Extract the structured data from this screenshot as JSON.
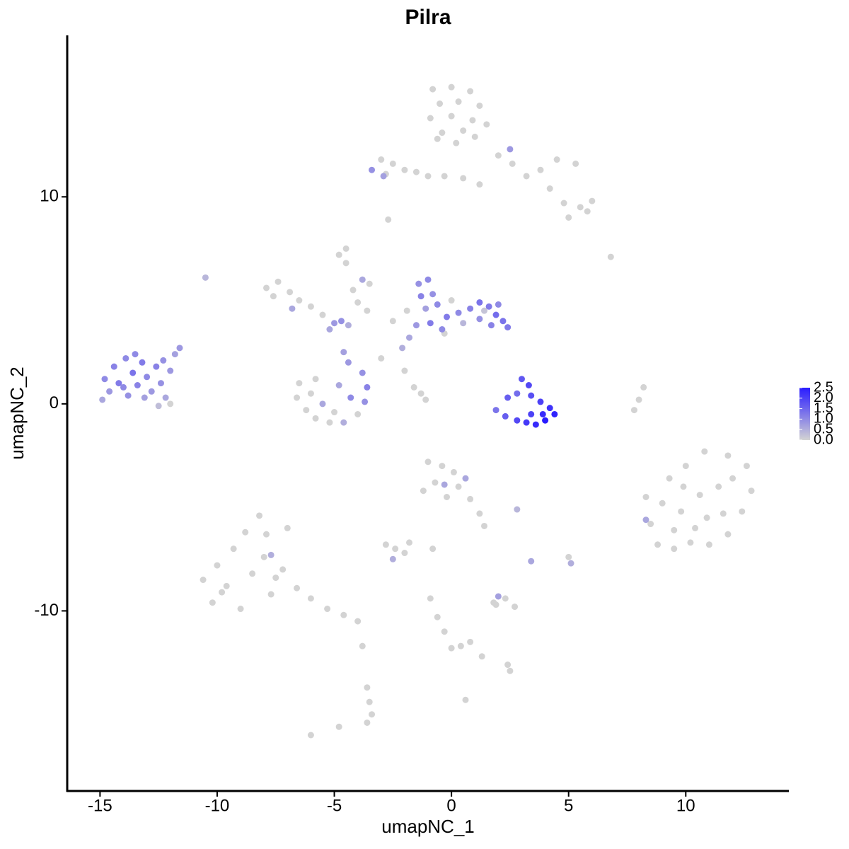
{
  "chart_data": {
    "type": "scatter",
    "title": "Pilra",
    "x_label": "umapNC_1",
    "y_label": "umapNC_2",
    "xlim": [
      -16.4,
      14.4
    ],
    "ylim": [
      -18.7,
      17.8
    ],
    "xticks": [
      -15,
      -10,
      -5,
      0,
      5,
      10
    ],
    "yticks": [
      -10,
      0,
      10
    ],
    "colorbar": {
      "lim": [
        0,
        2.5
      ],
      "low": "#d3d3d3",
      "high": "#2a1cff",
      "ticks": [
        {
          "value": 0,
          "label": "0.0"
        },
        0.5,
        {
          "value": 1,
          "label": "1.0"
        },
        1.5,
        {
          "value": 2,
          "label": "2.0"
        },
        2.5
      ]
    },
    "x": [
      -0.8,
      0,
      0.8,
      -0.5,
      0.3,
      1.2,
      -0.9,
      0,
      0.9,
      -0.4,
      0.5,
      1.5,
      0.2,
      -0.6,
      1.0,
      2.0,
      2.6,
      3.2,
      3.8,
      4.5,
      5.3,
      4.2,
      4.8,
      5.5,
      6.0,
      5.0,
      5.8,
      2.5,
      -3.0,
      -2.5,
      -2.8,
      -2.0,
      -1.5,
      -1.0,
      -0.3,
      0.5,
      1.2,
      -3.4,
      -2.9,
      -2.7,
      -10.5,
      6.8,
      -4.5,
      -4.8,
      -3.8,
      -7.9,
      -7.4,
      -7.6,
      -6.9,
      -6.5,
      -6.0,
      -5.5,
      -5.0,
      -4.7,
      -5.2,
      -4.4,
      -4.5,
      -4.2,
      -4.0,
      -3.6,
      -3.5,
      -6.8,
      -6.5,
      -6.6,
      -6.2,
      -5.8,
      -5.2,
      -4.6,
      -4.0,
      -3.7,
      -3.6,
      -3.8,
      -4.4,
      -4.6,
      -5.5,
      -5.0,
      -6.0,
      -4.3,
      -4.8,
      -5.8,
      -3,
      -2,
      -1.6,
      -1.3,
      -1.1,
      -1.4,
      -1.0,
      -1.3,
      -0.8,
      -1.1,
      -0.6,
      -0.2,
      0.3,
      0.8,
      1.2,
      1.6,
      1.9,
      2.2,
      2.4,
      1.7,
      1.2,
      0.5,
      -0.4,
      -0.9,
      -1.5,
      -1.8,
      -2.1,
      -2.5,
      -1.9,
      0.0,
      -0.3,
      2.0,
      1.4,
      2.4,
      2.8,
      3.0,
      3.3,
      3.4,
      3.8,
      4.2,
      4.4,
      4.0,
      3.6,
      3.2,
      2.8,
      2.3,
      1.9,
      3.9,
      3.4,
      8.2,
      8.0,
      7.8,
      -14.8,
      -14.6,
      -14.4,
      -14.2,
      -13.9,
      -13.8,
      -13.6,
      -13.4,
      -13.2,
      -13.0,
      -12.8,
      -12.6,
      -12.4,
      -12.2,
      -12.5,
      -12.0,
      -13.1,
      -14.0,
      -12.0,
      -11.8,
      -11.6,
      -12.3,
      -14.9,
      -13.5,
      8.3,
      8.5,
      8.8,
      9.5,
      10.2,
      11.0,
      11.8,
      12.4,
      12.8,
      12.6,
      11.8,
      10.8,
      10.0,
      9.3,
      9.0,
      9.8,
      10.6,
      11.4,
      11.6,
      10.4,
      9.5,
      12.0,
      10.9,
      9.9,
      8.3,
      -10.6,
      -10.2,
      -10.0,
      -9.6,
      -9.3,
      -9.0,
      -8.8,
      -8.5,
      -8.2,
      -8.0,
      -7.7,
      -7.9,
      -7.5,
      -7.0,
      -7.2,
      -6.6,
      -6.0,
      -5.3,
      -4.6,
      -4.0,
      -7.7,
      -9.8,
      -1.0,
      -0.4,
      0.1,
      -0.7,
      0.3,
      0.8,
      -0.2,
      0.6,
      -0.3,
      -1.2,
      1.2,
      1.4,
      -2.8,
      -2.4,
      -2.0,
      -2.5,
      -1.8,
      -0.8,
      2.8,
      3.4,
      5.0,
      5.1,
      1.8,
      2.3,
      2.7,
      2.0,
      1.9,
      -0.9,
      -0.6,
      -0.3,
      0.0,
      0.4,
      1.3,
      2.4,
      2.5,
      0.8,
      -3.8,
      -3.6,
      -3.5,
      -3.4,
      -3.6,
      -4.8,
      -6.0,
      0.6
    ],
    "values": [
      15.2,
      15.3,
      15.1,
      14.5,
      14.6,
      14.4,
      13.8,
      13.9,
      13.7,
      13.1,
      13.2,
      13.5,
      12.6,
      12.8,
      12.9,
      12.0,
      11.6,
      11.0,
      11.3,
      11.8,
      11.6,
      10.4,
      9.7,
      9.5,
      9.8,
      9.0,
      9.3,
      12.3,
      11.8,
      11.6,
      11.1,
      11.3,
      11.2,
      11.0,
      11.0,
      10.9,
      10.6,
      11.3,
      11.0,
      8.9,
      6.1,
      7.1,
      7.5,
      7.2,
      6.0,
      5.6,
      5.9,
      5.2,
      5.4,
      5.0,
      4.7,
      4.3,
      3.9,
      4.0,
      3.6,
      3.8,
      6.8,
      5.5,
      4.9,
      4.5,
      5.8,
      4.6,
      1.0,
      0.3,
      -0.3,
      -0.7,
      -0.9,
      -0.9,
      -0.5,
      0.1,
      0.8,
      1.5,
      2.0,
      2.5,
      0.0,
      -0.4,
      0.5,
      0.3,
      0.9,
      1.2,
      2.2,
      1.6,
      0.8,
      0.5,
      0.2,
      5.8,
      6.0,
      5.2,
      5.3,
      4.6,
      4.8,
      4.2,
      4.4,
      4.6,
      4.9,
      4.7,
      4.3,
      4.0,
      3.7,
      3.8,
      4.1,
      3.9,
      3.6,
      3.9,
      3.8,
      3.2,
      2.7,
      4.0,
      4.5,
      5.0,
      3.4,
      4.8,
      4.5,
      0.3,
      0.5,
      1.2,
      0.9,
      0.4,
      0.1,
      -0.2,
      -0.5,
      -0.8,
      -1.0,
      -0.9,
      -0.8,
      -0.6,
      -0.3,
      -0.5,
      -0.5,
      0.8,
      0.2,
      -0.3,
      1.2,
      0.6,
      1.8,
      1.0,
      2.2,
      0.4,
      1.5,
      0.9,
      2.0,
      1.3,
      0.6,
      1.8,
      1.0,
      0.3,
      -0.1,
      0.0,
      0.3,
      0.8,
      1.6,
      2.4,
      2.7,
      2.1,
      0.2,
      2.4,
      -4.5,
      -5.8,
      -6.8,
      -7.0,
      -6.7,
      -6.8,
      -6.3,
      -5.2,
      -4.2,
      -3.0,
      -2.5,
      -2.3,
      -3.0,
      -3.6,
      -4.8,
      -5.2,
      -4.4,
      -4.0,
      -5.3,
      -6.0,
      -6.1,
      -3.6,
      -5.5,
      -4.0,
      -5.6,
      -8.5,
      -9.6,
      -7.8,
      -8.8,
      -7.0,
      -9.9,
      -6.2,
      -8.2,
      -5.4,
      -7.4,
      -9.2,
      -6.3,
      -8.4,
      -6.0,
      -8.0,
      -8.9,
      -9.4,
      -9.9,
      -10.2,
      -10.5,
      -7.3,
      -9.1,
      -2.8,
      -3.0,
      -3.3,
      -3.8,
      -4.0,
      -4.6,
      -4.5,
      -3.6,
      -3.9,
      -4.2,
      -5.3,
      -5.9,
      -6.8,
      -7.0,
      -7.2,
      -7.5,
      -6.7,
      -7.0,
      -5.1,
      -7.6,
      -7.4,
      -7.7,
      -9.6,
      -9.4,
      -9.8,
      -9.3,
      -9.7,
      -9.4,
      -10.3,
      -11.0,
      -11.8,
      -11.7,
      -12.2,
      -12.6,
      -12.9,
      -11.5,
      -11.7,
      -13.7,
      -14.4,
      -15.0,
      -15.4,
      -15.6,
      -16.0,
      -14.3
    ],
    "expression": [
      0,
      0,
      0,
      0,
      0,
      0,
      0,
      0,
      0,
      0,
      0,
      0,
      0,
      0,
      0,
      0,
      0,
      0,
      0,
      0,
      0,
      0,
      0,
      0,
      0,
      0,
      0,
      0.8,
      0,
      0,
      0,
      0,
      0,
      0,
      0,
      0,
      0,
      0.9,
      0.7,
      0,
      0.4,
      0,
      0,
      0,
      0.6,
      0,
      0,
      0,
      0,
      0,
      0,
      0,
      0.8,
      0.9,
      0.6,
      0.5,
      0,
      0,
      0,
      0,
      0,
      0.6,
      0,
      0,
      0,
      0,
      0,
      0.5,
      0,
      0.9,
      1.1,
      0.9,
      0.8,
      0.7,
      0.6,
      0,
      0,
      1.0,
      0.6,
      0,
      0,
      0,
      0,
      0,
      0,
      0.9,
      1.0,
      1.1,
      0.9,
      0.7,
      1.0,
      1.2,
      1.0,
      1.1,
      1.3,
      1.2,
      1.4,
      1.3,
      1.2,
      1.1,
      0.9,
      0.4,
      1.0,
      1.2,
      0.8,
      0.6,
      0.5,
      0,
      0,
      0,
      0,
      1.0,
      0.2,
      1.6,
      1.4,
      1.7,
      1.9,
      1.8,
      2.0,
      2.2,
      2.4,
      2.5,
      2.3,
      2.1,
      1.9,
      1.6,
      1.3,
      2.3,
      2.0,
      0,
      0,
      0,
      1.0,
      0.8,
      1.1,
      1.2,
      1.0,
      0.9,
      1.3,
      1.1,
      1.2,
      1.0,
      0.8,
      1.1,
      0.9,
      0.6,
      0.3,
      0,
      0.7,
      1.0,
      0.8,
      0.7,
      0.8,
      0.9,
      0.6,
      1.0,
      0,
      0,
      0,
      0,
      0,
      0,
      0,
      0,
      0,
      0,
      0,
      0,
      0,
      0,
      0,
      0,
      0,
      0,
      0,
      0,
      0,
      0,
      0,
      0,
      0.6,
      0,
      0,
      0,
      0,
      0,
      0,
      0,
      0,
      0,
      0,
      0,
      0,
      0,
      0,
      0,
      0,
      0,
      0,
      0,
      0,
      0.5,
      0,
      0,
      0,
      0,
      0,
      0,
      0,
      0,
      0.6,
      0.6,
      0,
      0,
      0,
      0,
      0,
      0,
      0.5,
      0,
      0,
      0.4,
      0.6,
      0,
      0.5,
      0,
      0,
      0,
      0.7,
      0,
      0,
      0,
      0,
      0,
      0,
      0,
      0,
      0,
      0,
      0,
      0,
      0,
      0,
      0,
      0,
      0,
      0
    ]
  }
}
